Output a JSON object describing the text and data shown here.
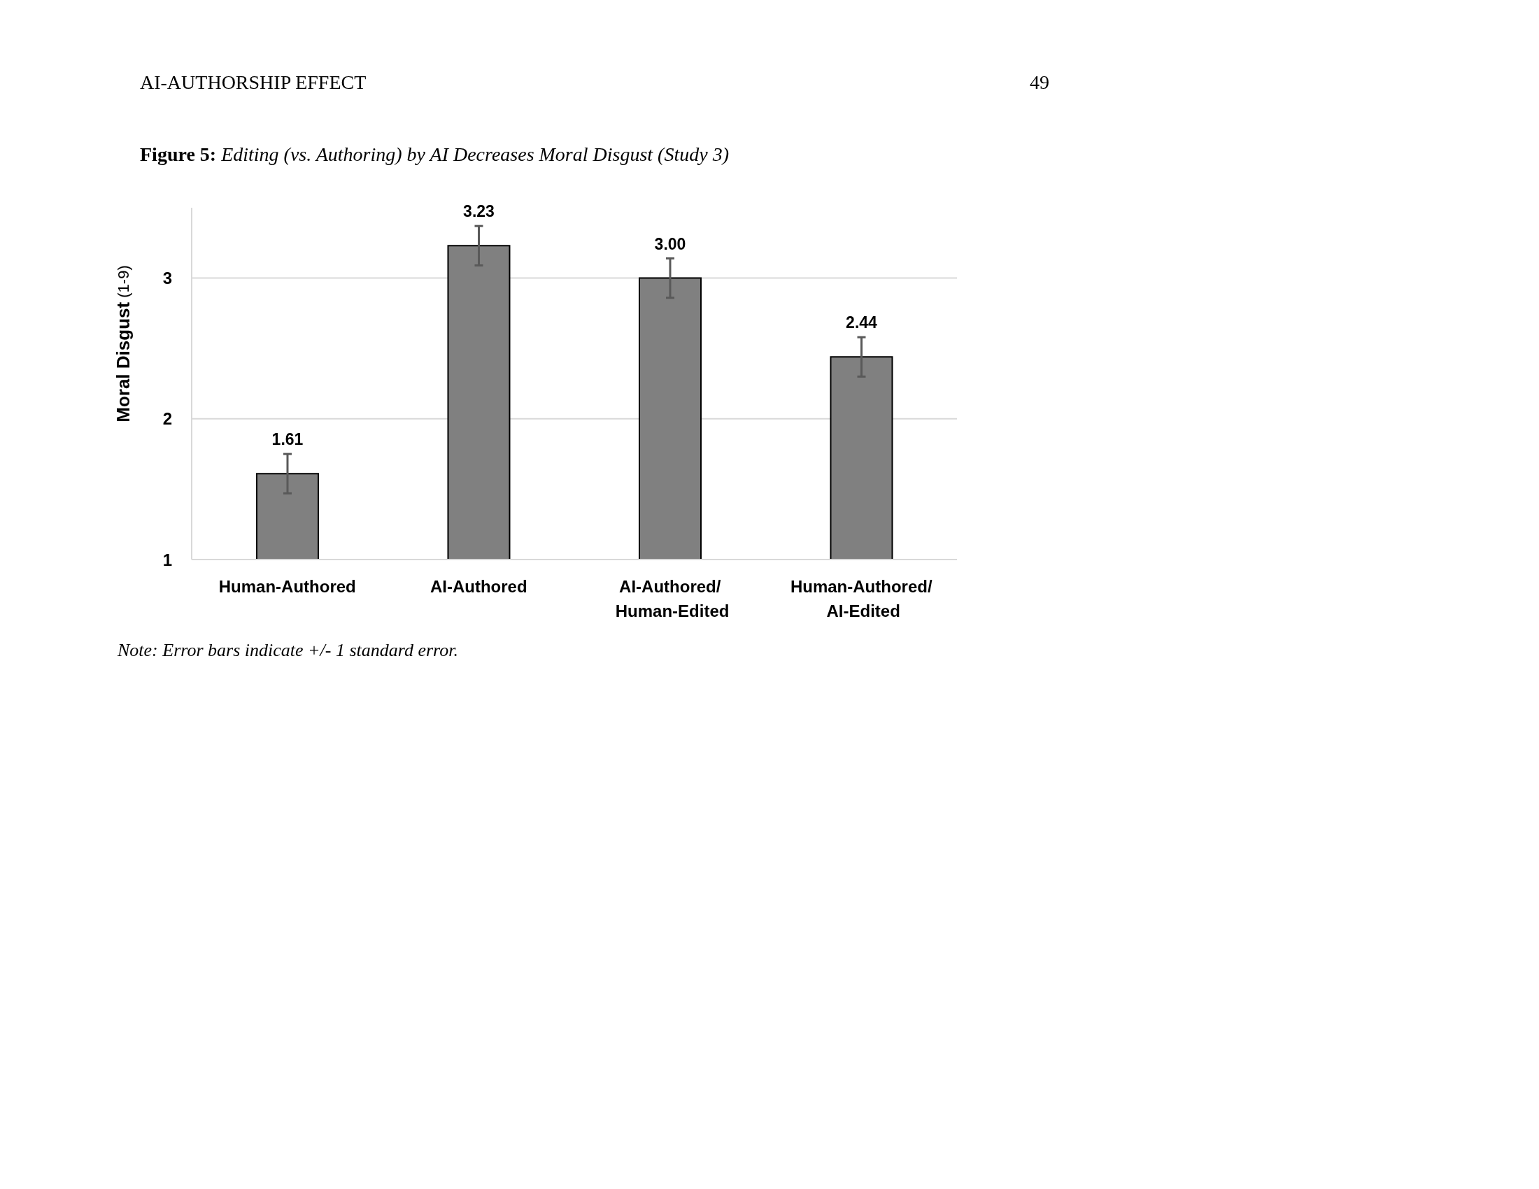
{
  "chart_data": {
    "type": "bar",
    "title": "Figure 5: Editing (vs. Authoring) by AI Decreases Moral Disgust (Study 3)",
    "ylabel": "Moral Disgust (1-9)",
    "categories": [
      "Human-Authored",
      "AI-Authored",
      "AI-Authored/ Human-Edited",
      "Human-Authored/ AI-Edited"
    ],
    "values": [
      1.61,
      3.23,
      3.0,
      2.44
    ],
    "errors": [
      0.14,
      0.14,
      0.14,
      0.14
    ],
    "value_labels": [
      "1.61",
      "3.23",
      "3.00",
      "2.44"
    ],
    "color": "#808080",
    "ylim": [
      1,
      3.5
    ],
    "yticks": [
      1,
      2,
      3
    ],
    "grid": "y",
    "annotations": [
      "AI-AUTHORSHIP EFFECT",
      "49",
      "Note: Error bars indicate +/- 1 standard error."
    ]
  }
}
